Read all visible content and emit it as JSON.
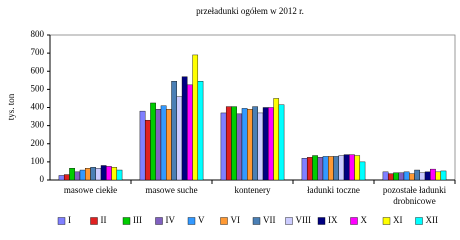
{
  "chart_data": {
    "type": "bar",
    "title": "przeładunki ogółem w 2012 r.",
    "y_label": "tys. ton",
    "categories": [
      "masowe ciekłe",
      "masowe suche",
      "kontenery",
      "ładunki toczne",
      "pozostałe ładunki drobnicowe"
    ],
    "series": [
      {
        "name": "I",
        "color": "#8080ff",
        "values": [
          25,
          380,
          370,
          120,
          45
        ]
      },
      {
        "name": "II",
        "color": "#e02020",
        "values": [
          30,
          330,
          405,
          125,
          35
        ]
      },
      {
        "name": "III",
        "color": "#00cc00",
        "values": [
          65,
          425,
          405,
          135,
          40
        ]
      },
      {
        "name": "IV",
        "color": "#8060c0",
        "values": [
          45,
          390,
          365,
          125,
          40
        ]
      },
      {
        "name": "V",
        "color": "#3399ff",
        "values": [
          55,
          410,
          395,
          130,
          45
        ]
      },
      {
        "name": "VI",
        "color": "#ff9933",
        "values": [
          65,
          390,
          390,
          130,
          35
        ]
      },
      {
        "name": "VII",
        "color": "#4a7fb5",
        "values": [
          70,
          545,
          405,
          130,
          55
        ]
      },
      {
        "name": "VIII",
        "color": "#ccccff",
        "values": [
          65,
          460,
          370,
          135,
          40
        ]
      },
      {
        "name": "IX",
        "color": "#000080",
        "values": [
          80,
          570,
          400,
          140,
          45
        ]
      },
      {
        "name": "X",
        "color": "#ff00ff",
        "values": [
          75,
          525,
          400,
          140,
          60
        ]
      },
      {
        "name": "XI",
        "color": "#ffff00",
        "values": [
          70,
          690,
          450,
          135,
          45
        ]
      },
      {
        "name": "XII",
        "color": "#00ffff",
        "values": [
          55,
          545,
          415,
          100,
          50
        ]
      }
    ],
    "ylim": [
      0,
      800
    ],
    "yticks": [
      0,
      100,
      200,
      300,
      400,
      500,
      600,
      700,
      800
    ],
    "grid": false
  }
}
